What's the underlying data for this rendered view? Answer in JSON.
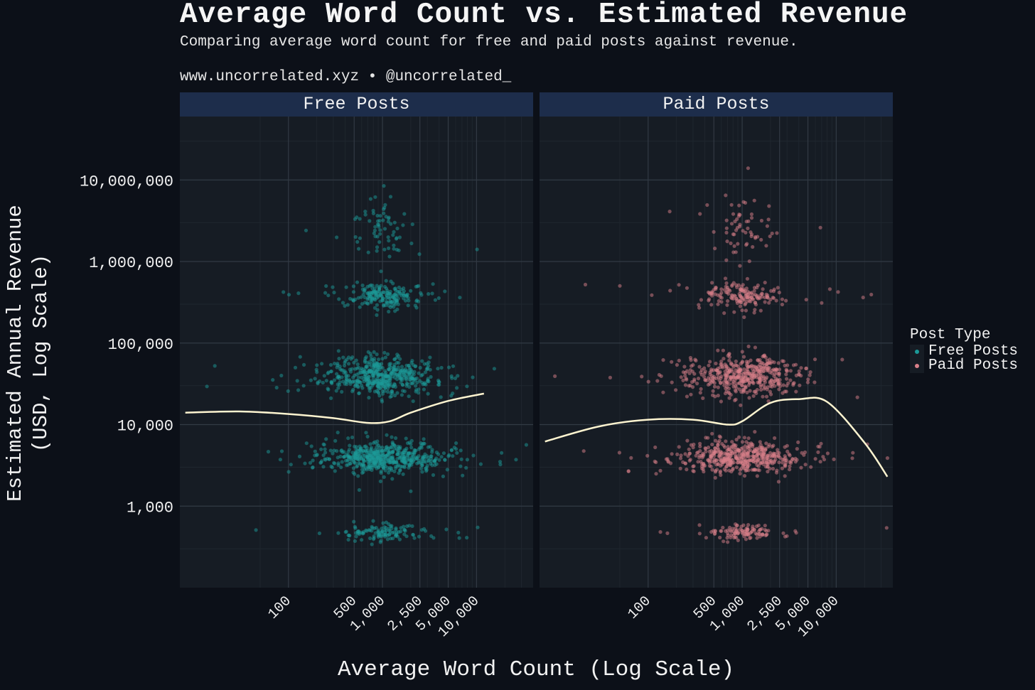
{
  "title": "Average Word Count vs. Estimated Revenue",
  "subtitle": "Comparing average word count for free and paid posts against revenue.",
  "caption": "www.uncorrelated.xyz • @uncorrelated_",
  "colors": {
    "background": "#0c1018",
    "panel": "#161c24",
    "strip": "#1d2d4b",
    "free": "#1b9a98",
    "paid": "#d9808a",
    "smooth": "#fdf4d0",
    "grid_major": "#323a44",
    "grid_minor": "#1f262e"
  },
  "legend": {
    "title": "Post Type",
    "items": [
      "Free Posts",
      "Paid Posts"
    ]
  },
  "chart_data": {
    "type": "scatter",
    "facets": [
      "Free Posts",
      "Paid Posts"
    ],
    "xlabel": "Average Word Count (Log Scale)",
    "ylabel": "Estimated Annual Revenue\n(USD, Log Scale)",
    "x_scale": "log",
    "y_scale": "log",
    "xlim": [
      7,
      40000
    ],
    "ylim": [
      100,
      60000000
    ],
    "x_ticks": [
      100,
      500,
      1000,
      2500,
      5000,
      10000
    ],
    "x_tick_labels": [
      "100",
      "500",
      "1,000",
      "2,500",
      "5,000",
      "10,000"
    ],
    "y_ticks": [
      1000,
      10000,
      100000,
      1000000,
      10000000
    ],
    "y_tick_labels": [
      "1,000",
      "10,000",
      "100,000",
      "1,000,000",
      "10,000,000"
    ],
    "grid": true,
    "legend_position": "right",
    "series": [
      {
        "name": "Free Posts",
        "color": "#1b9a98",
        "point_clusters": [
          {
            "x_center": 1000,
            "y_center": 4000,
            "approx_points": 1900
          },
          {
            "x_center": 1000,
            "y_center": 40000,
            "approx_points": 1800
          },
          {
            "x_center": 1000,
            "y_center": 380000,
            "approx_points": 700
          },
          {
            "x_center": 1000,
            "y_center": 480,
            "approx_points": 420
          },
          {
            "x_center": 1000,
            "y_center": 2500000,
            "approx_points": 240
          }
        ],
        "smooth_line": [
          {
            "x": 8,
            "y": 14000
          },
          {
            "x": 30,
            "y": 14500
          },
          {
            "x": 100,
            "y": 13500
          },
          {
            "x": 300,
            "y": 12000
          },
          {
            "x": 700,
            "y": 10500
          },
          {
            "x": 1200,
            "y": 11000
          },
          {
            "x": 2000,
            "y": 14000
          },
          {
            "x": 5000,
            "y": 19500
          },
          {
            "x": 12000,
            "y": 24000
          }
        ]
      },
      {
        "name": "Paid Posts",
        "color": "#d9808a",
        "point_clusters": [
          {
            "x_center": 1000,
            "y_center": 4000,
            "approx_points": 1700
          },
          {
            "x_center": 1000,
            "y_center": 40000,
            "approx_points": 1600
          },
          {
            "x_center": 1000,
            "y_center": 380000,
            "approx_points": 600
          },
          {
            "x_center": 1000,
            "y_center": 480,
            "approx_points": 380
          },
          {
            "x_center": 1000,
            "y_center": 2500000,
            "approx_points": 220
          }
        ],
        "smooth_line": [
          {
            "x": 8,
            "y": 6200
          },
          {
            "x": 30,
            "y": 9500
          },
          {
            "x": 100,
            "y": 11500
          },
          {
            "x": 300,
            "y": 11500
          },
          {
            "x": 700,
            "y": 10000
          },
          {
            "x": 1000,
            "y": 11000
          },
          {
            "x": 2000,
            "y": 18500
          },
          {
            "x": 4000,
            "y": 20500
          },
          {
            "x": 8000,
            "y": 19000
          },
          {
            "x": 20000,
            "y": 6000
          },
          {
            "x": 35000,
            "y": 2300
          }
        ]
      }
    ]
  }
}
